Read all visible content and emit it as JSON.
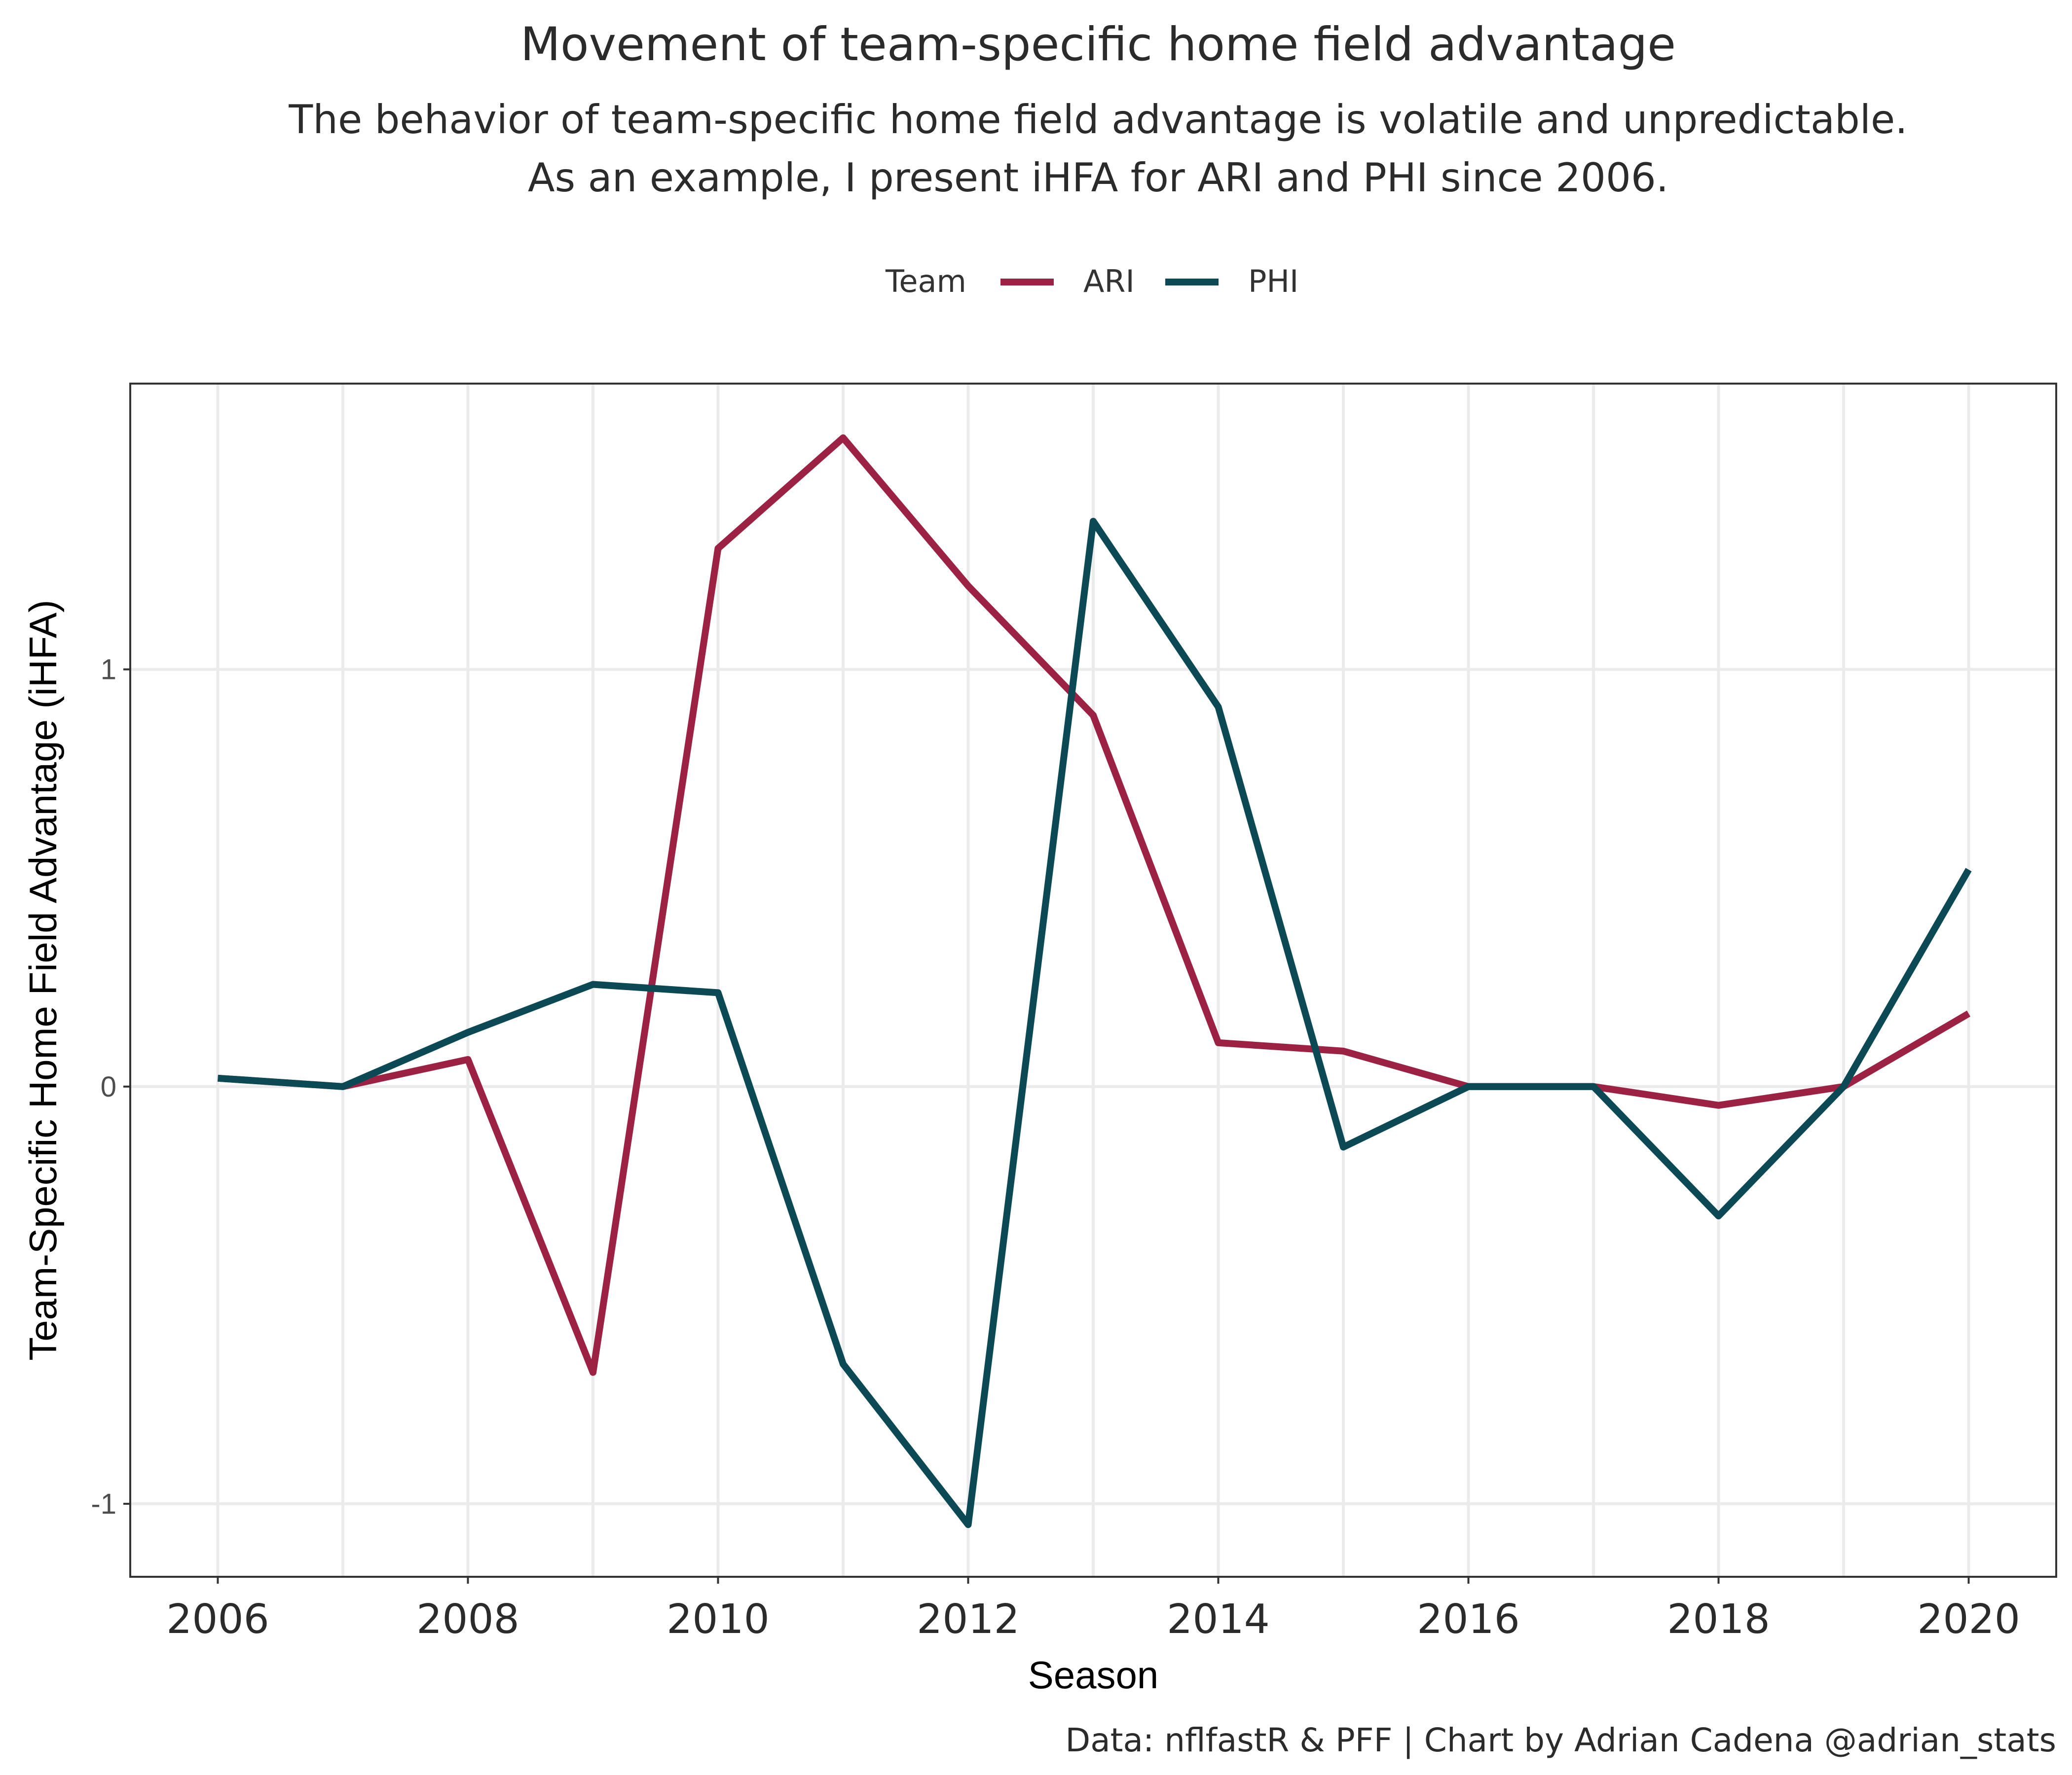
{
  "chart_data": {
    "type": "line",
    "title": "Movement of team-specific home field advantage",
    "subtitle": [
      "The behavior of team-specific home field advantage is volatile and unpredictable.",
      "As an example, I present iHFA for ARI and PHI since 2006."
    ],
    "xlabel": "Season",
    "ylabel": "Team-Specific Home Field Advantage (iHFA)",
    "caption": "Data: nflfastR & PFF | Chart by Adrian Cadena @adrian_stats",
    "legend": {
      "title": "Team",
      "position": "top"
    },
    "x": [
      2006,
      2007,
      2008,
      2009,
      2010,
      2011,
      2012,
      2013,
      2014,
      2015,
      2016,
      2017,
      2018,
      2019,
      2020
    ],
    "xlim": [
      2005.3,
      2020.7
    ],
    "ylim": [
      -1.175,
      1.685
    ],
    "x_ticks": [
      2006,
      2008,
      2010,
      2012,
      2014,
      2016,
      2018,
      2020
    ],
    "x_tick_labels": [
      "2006",
      "2008",
      "2010",
      "2012",
      "2014",
      "2016",
      "2018",
      "2020"
    ],
    "y_ticks": [
      -1,
      0,
      1
    ],
    "y_tick_labels": [
      "-1",
      "0",
      "1"
    ],
    "grid": true,
    "series": [
      {
        "name": "ARI",
        "color": "#9b2243",
        "values": [
          0.02,
          0.0,
          0.065,
          -0.685,
          1.29,
          1.555,
          1.2,
          0.89,
          0.105,
          0.085,
          0.0,
          0.0,
          -0.045,
          0.0,
          0.175
        ]
      },
      {
        "name": "PHI",
        "color": "#0b4a54",
        "values": [
          0.02,
          0.0,
          0.13,
          0.245,
          0.225,
          -0.665,
          -1.05,
          1.355,
          0.91,
          -0.145,
          0.0,
          0.0,
          -0.31,
          0.0,
          0.52
        ]
      }
    ]
  }
}
